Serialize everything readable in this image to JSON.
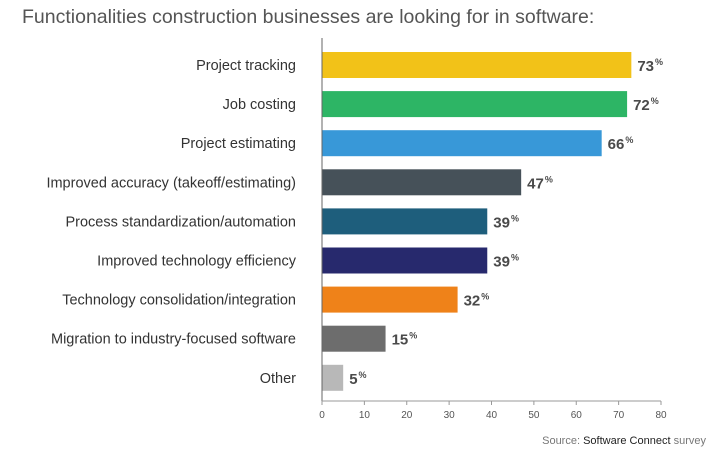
{
  "page": {
    "title": "Functionalities construction businesses are looking for in  software:",
    "source_prefix": "Source:",
    "source_brand": "Software Connect",
    "source_suffix": "survey"
  },
  "chart_data": {
    "type": "bar",
    "orientation": "horizontal",
    "title": "Functionalities construction businesses are looking for in  software:",
    "xlabel": "",
    "ylabel": "",
    "xlim": [
      0,
      80
    ],
    "xticks": [
      0,
      10,
      20,
      30,
      40,
      50,
      60,
      70,
      80
    ],
    "value_suffix": "%",
    "grid": false,
    "categories": [
      "Project tracking",
      "Job costing",
      "Project estimating",
      "Improved accuracy (takeoff/estimating)",
      "Process standardization/automation",
      "Improved technology efficiency",
      "Technology consolidation/integration",
      "Migration to industry-focused software",
      "Other"
    ],
    "values": [
      73,
      72,
      66,
      47,
      39,
      39,
      32,
      15,
      5
    ],
    "colors": [
      "#f2c218",
      "#2db565",
      "#3898d8",
      "#465159",
      "#1e5e7c",
      "#27296d",
      "#ef8219",
      "#6d6d6d",
      "#b8b8b8"
    ]
  }
}
